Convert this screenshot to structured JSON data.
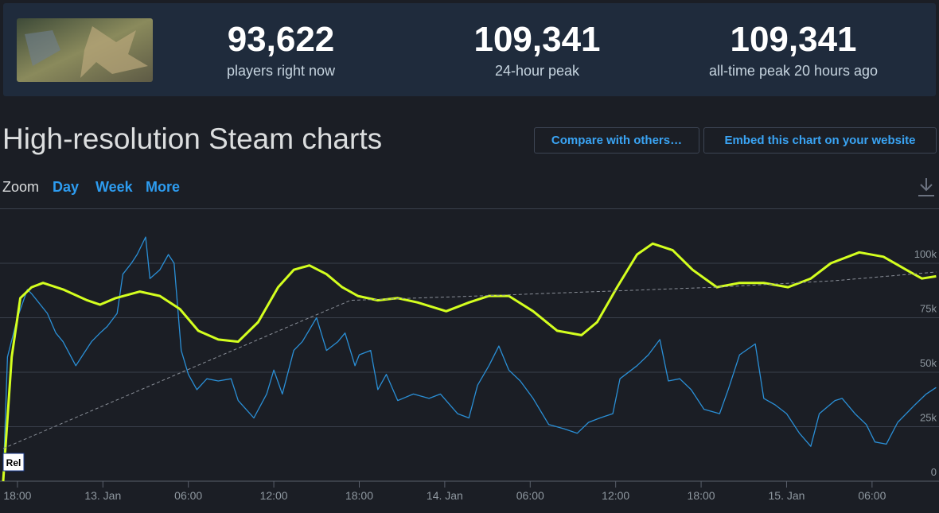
{
  "header": {
    "stats": [
      {
        "value": "93,622",
        "label": "players right now"
      },
      {
        "value": "109,341",
        "label": "24-hour peak"
      },
      {
        "value": "109,341",
        "label": "all-time peak 20 hours ago"
      }
    ]
  },
  "page": {
    "title": "High-resolution Steam charts",
    "buttons": [
      "Compare with others…",
      "Embed this chart on your website"
    ],
    "zoom": {
      "label": "Zoom",
      "options": [
        "Day",
        "Week",
        "More"
      ]
    }
  },
  "chart_data": {
    "type": "line",
    "xlim": [
      17,
      82.7
    ],
    "xticks": [
      {
        "value": 18,
        "label": "18:00"
      },
      {
        "value": 24,
        "label": "13. Jan"
      },
      {
        "value": 30,
        "label": "06:00"
      },
      {
        "value": 36,
        "label": "12:00"
      },
      {
        "value": 42,
        "label": "18:00"
      },
      {
        "value": 48,
        "label": "14. Jan"
      },
      {
        "value": 54,
        "label": "06:00"
      },
      {
        "value": 60,
        "label": "12:00"
      },
      {
        "value": 66,
        "label": "18:00"
      },
      {
        "value": 72,
        "label": "15. Jan"
      },
      {
        "value": 78,
        "label": "06:00"
      }
    ],
    "ylim": [
      0,
      125000
    ],
    "yticks": [
      {
        "value": 0,
        "label": "0"
      },
      {
        "value": 25000,
        "label": "25k"
      },
      {
        "value": 50000,
        "label": "50k"
      },
      {
        "value": 75000,
        "label": "75k"
      },
      {
        "value": 100000,
        "label": "100k"
      }
    ],
    "grid": true,
    "annotations": [
      {
        "text": "Rel",
        "x": 17
      }
    ],
    "series": [
      {
        "color": "#2a8fd6",
        "line_style": "solid",
        "x": [
          17,
          17.3,
          18,
          18.7,
          19,
          20.1,
          20.7,
          21.2,
          22.1,
          22.6,
          23.2,
          23.8,
          24.3,
          25,
          25.4,
          26,
          26.4,
          27,
          27.3,
          28,
          28.6,
          29,
          29.5,
          30,
          30.6,
          31.3,
          32.1,
          33,
          33.5,
          34.6,
          35.5,
          36,
          36.6,
          37.4,
          38,
          39,
          39.7,
          40.5,
          41,
          41.7,
          42,
          42.8,
          43.3,
          43.9,
          44.7,
          45.8,
          46.9,
          47.7,
          48.9,
          49.7,
          50.3,
          51.1,
          51.8,
          52.5,
          53.3,
          54.2,
          55.3,
          56.4,
          57.3,
          58.1,
          58.9,
          59.8,
          60.3,
          61.5,
          62.3,
          63.1,
          63.7,
          64.5,
          65.3,
          66.2,
          67.3,
          67.9,
          68.7,
          69.8,
          70.4,
          71.2,
          72,
          72.9,
          73.7,
          74.3,
          75.4,
          75.9,
          76.8,
          77.6,
          78.2,
          79,
          79.8,
          81,
          81.8,
          82.5
        ],
        "values": [
          0,
          57000,
          75000,
          88000,
          86000,
          77000,
          68000,
          64000,
          53000,
          58000,
          64000,
          68000,
          71000,
          77000,
          95000,
          100000,
          104000,
          112000,
          93000,
          97000,
          104000,
          100000,
          60000,
          49000,
          42000,
          47000,
          46000,
          47000,
          37000,
          29000,
          40000,
          51000,
          40000,
          60000,
          64000,
          75000,
          60000,
          64000,
          68000,
          53000,
          58000,
          60000,
          42000,
          49000,
          37000,
          40000,
          38000,
          40000,
          31000,
          29000,
          44000,
          53000,
          62000,
          51000,
          46000,
          38000,
          26000,
          24000,
          22000,
          27000,
          29000,
          31000,
          47000,
          53000,
          58000,
          65000,
          46000,
          47000,
          42000,
          33000,
          31000,
          42000,
          58000,
          63000,
          38000,
          35000,
          31000,
          22000,
          16000,
          31000,
          37000,
          38000,
          31000,
          26000,
          18000,
          17000,
          27000,
          35000,
          40000,
          43000
        ]
      },
      {
        "color": "#d4ff1f",
        "line_style": "solid",
        "x": [
          17,
          17.6,
          18.2,
          19,
          19.8,
          21.2,
          22.9,
          23.8,
          24.9,
          26.6,
          28,
          29.4,
          30.7,
          32.1,
          33.5,
          34.9,
          36.3,
          37.4,
          38.5,
          39.7,
          40.8,
          41.9,
          43.3,
          44.7,
          46.1,
          48.1,
          49.7,
          51.1,
          52.5,
          54.2,
          55.9,
          57.6,
          58.7,
          60.1,
          61.5,
          62.6,
          64,
          65.4,
          67.1,
          68.7,
          70.4,
          72.1,
          73.7,
          75.1,
          77.1,
          78.8,
          80.4,
          81.5,
          82.5
        ],
        "values": [
          0,
          57000,
          84000,
          89000,
          91000,
          88000,
          83000,
          81000,
          84000,
          87000,
          85000,
          79000,
          69000,
          65000,
          64000,
          73000,
          89000,
          97000,
          99000,
          95000,
          89000,
          85000,
          83000,
          84000,
          82000,
          78000,
          82000,
          85000,
          85000,
          78000,
          69000,
          67000,
          73000,
          89000,
          104000,
          109000,
          106000,
          97000,
          89000,
          91000,
          91000,
          89000,
          93000,
          100000,
          105000,
          103000,
          97000,
          93000,
          94000
        ]
      },
      {
        "color": "#8a8f98",
        "line_style": "dashed",
        "x": [
          17,
          38.5,
          41.4,
          50.3,
          67.1,
          75.4,
          82.5
        ],
        "values": [
          15000,
          75000,
          83000,
          85000,
          89000,
          92000,
          96000
        ]
      }
    ]
  }
}
